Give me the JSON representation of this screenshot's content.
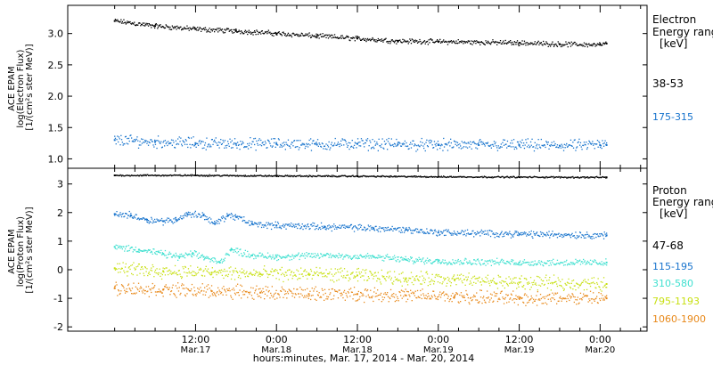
{
  "chart_data": [
    {
      "type": "scatter",
      "panel": "electron",
      "ylabel_lines": [
        "ACE EPAM",
        "log(Electron Flux)",
        "[1/(cm²s ster MeV)]"
      ],
      "ylim": [
        0.85,
        3.45
      ],
      "yticks": [
        1.0,
        1.5,
        2.0,
        2.5,
        3.0
      ],
      "ytick_labels": [
        "1.0",
        "1.5",
        "2.0",
        "2.5",
        "3.0"
      ],
      "legend_title_lines": [
        "Electron",
        "Energy ranges",
        "[keV]"
      ],
      "series": [
        {
          "name": "38-53",
          "color": "#000000",
          "x": [
            0.0,
            0.25,
            0.5,
            0.75,
            1.0,
            1.25,
            1.5,
            1.75,
            2.0,
            2.25,
            2.5,
            2.75,
            3.0,
            3.04
          ],
          "y": [
            3.2,
            3.12,
            3.07,
            3.04,
            3.0,
            2.96,
            2.92,
            2.88,
            2.87,
            2.86,
            2.85,
            2.83,
            2.82,
            2.84
          ]
        },
        {
          "name": "175-315",
          "color": "#1874cd",
          "x": [
            0.0,
            0.25,
            0.5,
            0.75,
            1.0,
            1.25,
            1.5,
            1.75,
            2.0,
            2.25,
            2.5,
            2.75,
            3.0,
            3.04
          ],
          "y": [
            1.3,
            1.27,
            1.25,
            1.24,
            1.24,
            1.23,
            1.24,
            1.23,
            1.22,
            1.22,
            1.22,
            1.21,
            1.22,
            1.22
          ]
        }
      ]
    },
    {
      "type": "scatter",
      "panel": "proton",
      "ylabel_lines": [
        "ACE EPAM",
        "log(Proton Flux)",
        "[1/(cm²s ster MeV)]"
      ],
      "ylim": [
        -2.15,
        3.55
      ],
      "yticks": [
        -2,
        -1,
        0,
        1,
        2,
        3
      ],
      "ytick_labels": [
        "-2",
        "-1",
        "0",
        "1",
        "2",
        "3"
      ],
      "legend_title_lines": [
        "Proton",
        "Energy ranges",
        "[keV]"
      ],
      "series": [
        {
          "name": "47-68",
          "color": "#000000",
          "x": [
            0.0,
            0.5,
            1.0,
            1.5,
            2.0,
            2.5,
            3.04
          ],
          "y": [
            3.3,
            3.3,
            3.28,
            3.27,
            3.25,
            3.24,
            3.23
          ]
        },
        {
          "name": "115-195",
          "color": "#1874cd",
          "x": [
            0.0,
            0.1,
            0.2,
            0.3,
            0.38,
            0.45,
            0.55,
            0.62,
            0.7,
            0.75,
            0.85,
            1.0,
            1.3,
            1.6,
            1.8,
            2.0,
            2.5,
            3.04
          ],
          "y": [
            1.95,
            1.9,
            1.75,
            1.7,
            1.75,
            1.95,
            1.9,
            1.6,
            1.9,
            1.85,
            1.6,
            1.55,
            1.5,
            1.45,
            1.4,
            1.3,
            1.25,
            1.2
          ]
        },
        {
          "name": "310-580",
          "color": "#40e0d0",
          "x": [
            0.0,
            0.15,
            0.3,
            0.4,
            0.48,
            0.55,
            0.65,
            0.72,
            0.85,
            1.0,
            1.3,
            1.6,
            1.8,
            2.0,
            2.5,
            3.04
          ],
          "y": [
            0.8,
            0.7,
            0.55,
            0.45,
            0.55,
            0.45,
            0.25,
            0.7,
            0.5,
            0.45,
            0.5,
            0.45,
            0.35,
            0.3,
            0.25,
            0.25
          ]
        },
        {
          "name": "795-1193",
          "color": "#c8e014",
          "x": [
            0.0,
            0.3,
            0.6,
            0.9,
            1.2,
            1.5,
            1.8,
            2.1,
            2.5,
            3.04
          ],
          "y": [
            0.05,
            -0.05,
            -0.1,
            -0.15,
            -0.15,
            -0.2,
            -0.3,
            -0.35,
            -0.45,
            -0.5
          ]
        },
        {
          "name": "1060-1900",
          "color": "#e8891a",
          "x": [
            0.0,
            0.3,
            0.6,
            0.9,
            1.2,
            1.5,
            1.8,
            2.1,
            2.5,
            3.04
          ],
          "y": [
            -0.65,
            -0.7,
            -0.75,
            -0.8,
            -0.85,
            -0.85,
            -0.9,
            -0.95,
            -1.0,
            -1.0
          ]
        }
      ]
    }
  ],
  "time_axis": {
    "xlim": [
      -0.29,
      3.29
    ],
    "major_ticks": [
      0.5,
      1.0,
      1.5,
      2.0,
      2.5,
      3.0
    ],
    "tick_times": [
      "12:00",
      "0:00",
      "12:00",
      "0:00",
      "12:00",
      "0:00"
    ],
    "tick_dates": [
      "Mar.17",
      "Mar.18",
      "Mar.18",
      "Mar.19",
      "Mar.19",
      "Mar.20"
    ],
    "xlabel": "hours:minutes, Mar. 17, 2014 - Mar. 20, 2014"
  }
}
